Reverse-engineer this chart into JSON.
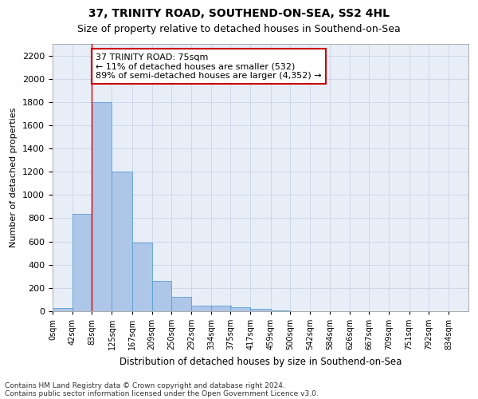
{
  "title1": "37, TRINITY ROAD, SOUTHEND-ON-SEA, SS2 4HL",
  "title2": "Size of property relative to detached houses in Southend-on-Sea",
  "xlabel": "Distribution of detached houses by size in Southend-on-Sea",
  "ylabel": "Number of detached properties",
  "footnote1": "Contains HM Land Registry data © Crown copyright and database right 2024.",
  "footnote2": "Contains public sector information licensed under the Open Government Licence v3.0.",
  "annotation_title": "37 TRINITY ROAD: 75sqm",
  "annotation_line1": "← 11% of detached houses are smaller (532)",
  "annotation_line2": "89% of semi-detached houses are larger (4,352) →",
  "bar_left_edges": [
    0,
    42,
    83,
    125,
    167,
    209,
    250,
    292,
    334,
    375,
    417,
    459,
    500,
    542,
    584,
    626,
    667,
    709,
    751,
    792
  ],
  "bar_widths": [
    42,
    41,
    42,
    42,
    42,
    41,
    42,
    42,
    42,
    42,
    42,
    41,
    42,
    42,
    42,
    41,
    42,
    42,
    41,
    42
  ],
  "bar_heights": [
    25,
    840,
    1800,
    1200,
    590,
    260,
    125,
    50,
    45,
    32,
    20,
    5,
    0,
    0,
    0,
    0,
    0,
    0,
    0,
    0
  ],
  "bar_color": "#aec6e8",
  "bar_edge_color": "#5a9fd4",
  "tick_labels": [
    "0sqm",
    "42sqm",
    "83sqm",
    "125sqm",
    "167sqm",
    "209sqm",
    "250sqm",
    "292sqm",
    "334sqm",
    "375sqm",
    "417sqm",
    "459sqm",
    "500sqm",
    "542sqm",
    "584sqm",
    "626sqm",
    "667sqm",
    "709sqm",
    "751sqm",
    "792sqm",
    "834sqm"
  ],
  "ylim": [
    0,
    2300
  ],
  "yticks": [
    0,
    200,
    400,
    600,
    800,
    1000,
    1200,
    1400,
    1600,
    1800,
    2000,
    2200
  ],
  "red_line_x": 83,
  "annotation_box_color": "#ffffff",
  "annotation_box_edge": "#cc0000",
  "grid_color": "#c8d4e8",
  "bg_color": "#e8eef8",
  "title1_fontsize": 10,
  "title2_fontsize": 9
}
